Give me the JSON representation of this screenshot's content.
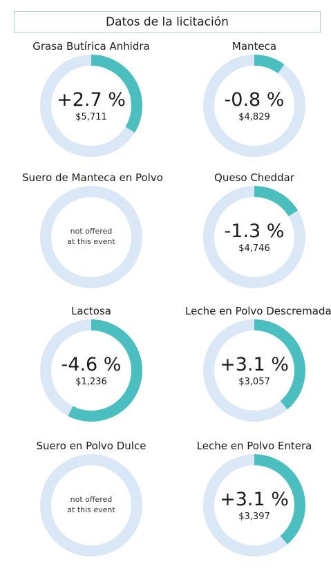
{
  "header": {
    "title": "Datos de la licitación"
  },
  "colors": {
    "ring_background": "#d9e7f6",
    "ring_fill": "#4bbfbf",
    "title_border": "#a9cfd3"
  },
  "chart_data": {
    "type": "donut",
    "items": [
      {
        "name": "Grasa Butírica Anhidra",
        "change_label": "+2.7 %",
        "change": 2.7,
        "price": "$5,711",
        "offered": true
      },
      {
        "name": "Manteca",
        "change_label": "-0.8 %",
        "change": -0.8,
        "price": "$4,829",
        "offered": true
      },
      {
        "name": "Suero de Manteca en Polvo",
        "offered": false,
        "na_line1": "not offered",
        "na_line2": "at this event"
      },
      {
        "name": "Queso Cheddar",
        "change_label": "-1.3 %",
        "change": -1.3,
        "price": "$4,746",
        "offered": true
      },
      {
        "name": "Lactosa",
        "change_label": "-4.6 %",
        "change": -4.6,
        "price": "$1,236",
        "offered": true
      },
      {
        "name": "Leche en Polvo Descremada",
        "change_label": "+3.1 %",
        "change": 3.1,
        "price": "$3,057",
        "offered": true
      },
      {
        "name": "Suero en Polvo Dulce",
        "offered": false,
        "na_line1": "not offered",
        "na_line2": "at this event"
      },
      {
        "name": "Leche en Polvo Entera",
        "change_label": "+3.1 %",
        "change": 3.1,
        "price": "$3,397",
        "offered": true
      }
    ]
  }
}
